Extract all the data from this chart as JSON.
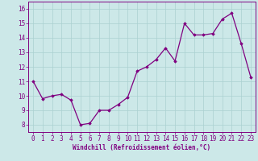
{
  "x": [
    0,
    1,
    2,
    3,
    4,
    5,
    6,
    7,
    8,
    9,
    10,
    11,
    12,
    13,
    14,
    15,
    16,
    17,
    18,
    19,
    20,
    21,
    22,
    23
  ],
  "y": [
    11.0,
    9.8,
    10.0,
    10.1,
    9.7,
    8.0,
    8.1,
    9.0,
    9.0,
    9.4,
    9.9,
    11.7,
    12.0,
    12.5,
    13.3,
    12.4,
    15.0,
    14.2,
    14.2,
    14.3,
    15.3,
    15.7,
    13.6,
    11.3
  ],
  "line_color": "#800080",
  "marker": "D",
  "marker_size": 1.8,
  "line_width": 0.9,
  "background_color": "#cce8e8",
  "grid_color": "#aad0d0",
  "xlabel": "Windchill (Refroidissement éolien,°C)",
  "xlabel_fontsize": 5.5,
  "ylabel_ticks": [
    8,
    9,
    10,
    11,
    12,
    13,
    14,
    15,
    16
  ],
  "ylim": [
    7.5,
    16.5
  ],
  "xlim": [
    -0.5,
    23.5
  ],
  "tick_fontsize": 5.5,
  "tick_color": "#800080",
  "label_color": "#800080",
  "spine_color": "#800080"
}
